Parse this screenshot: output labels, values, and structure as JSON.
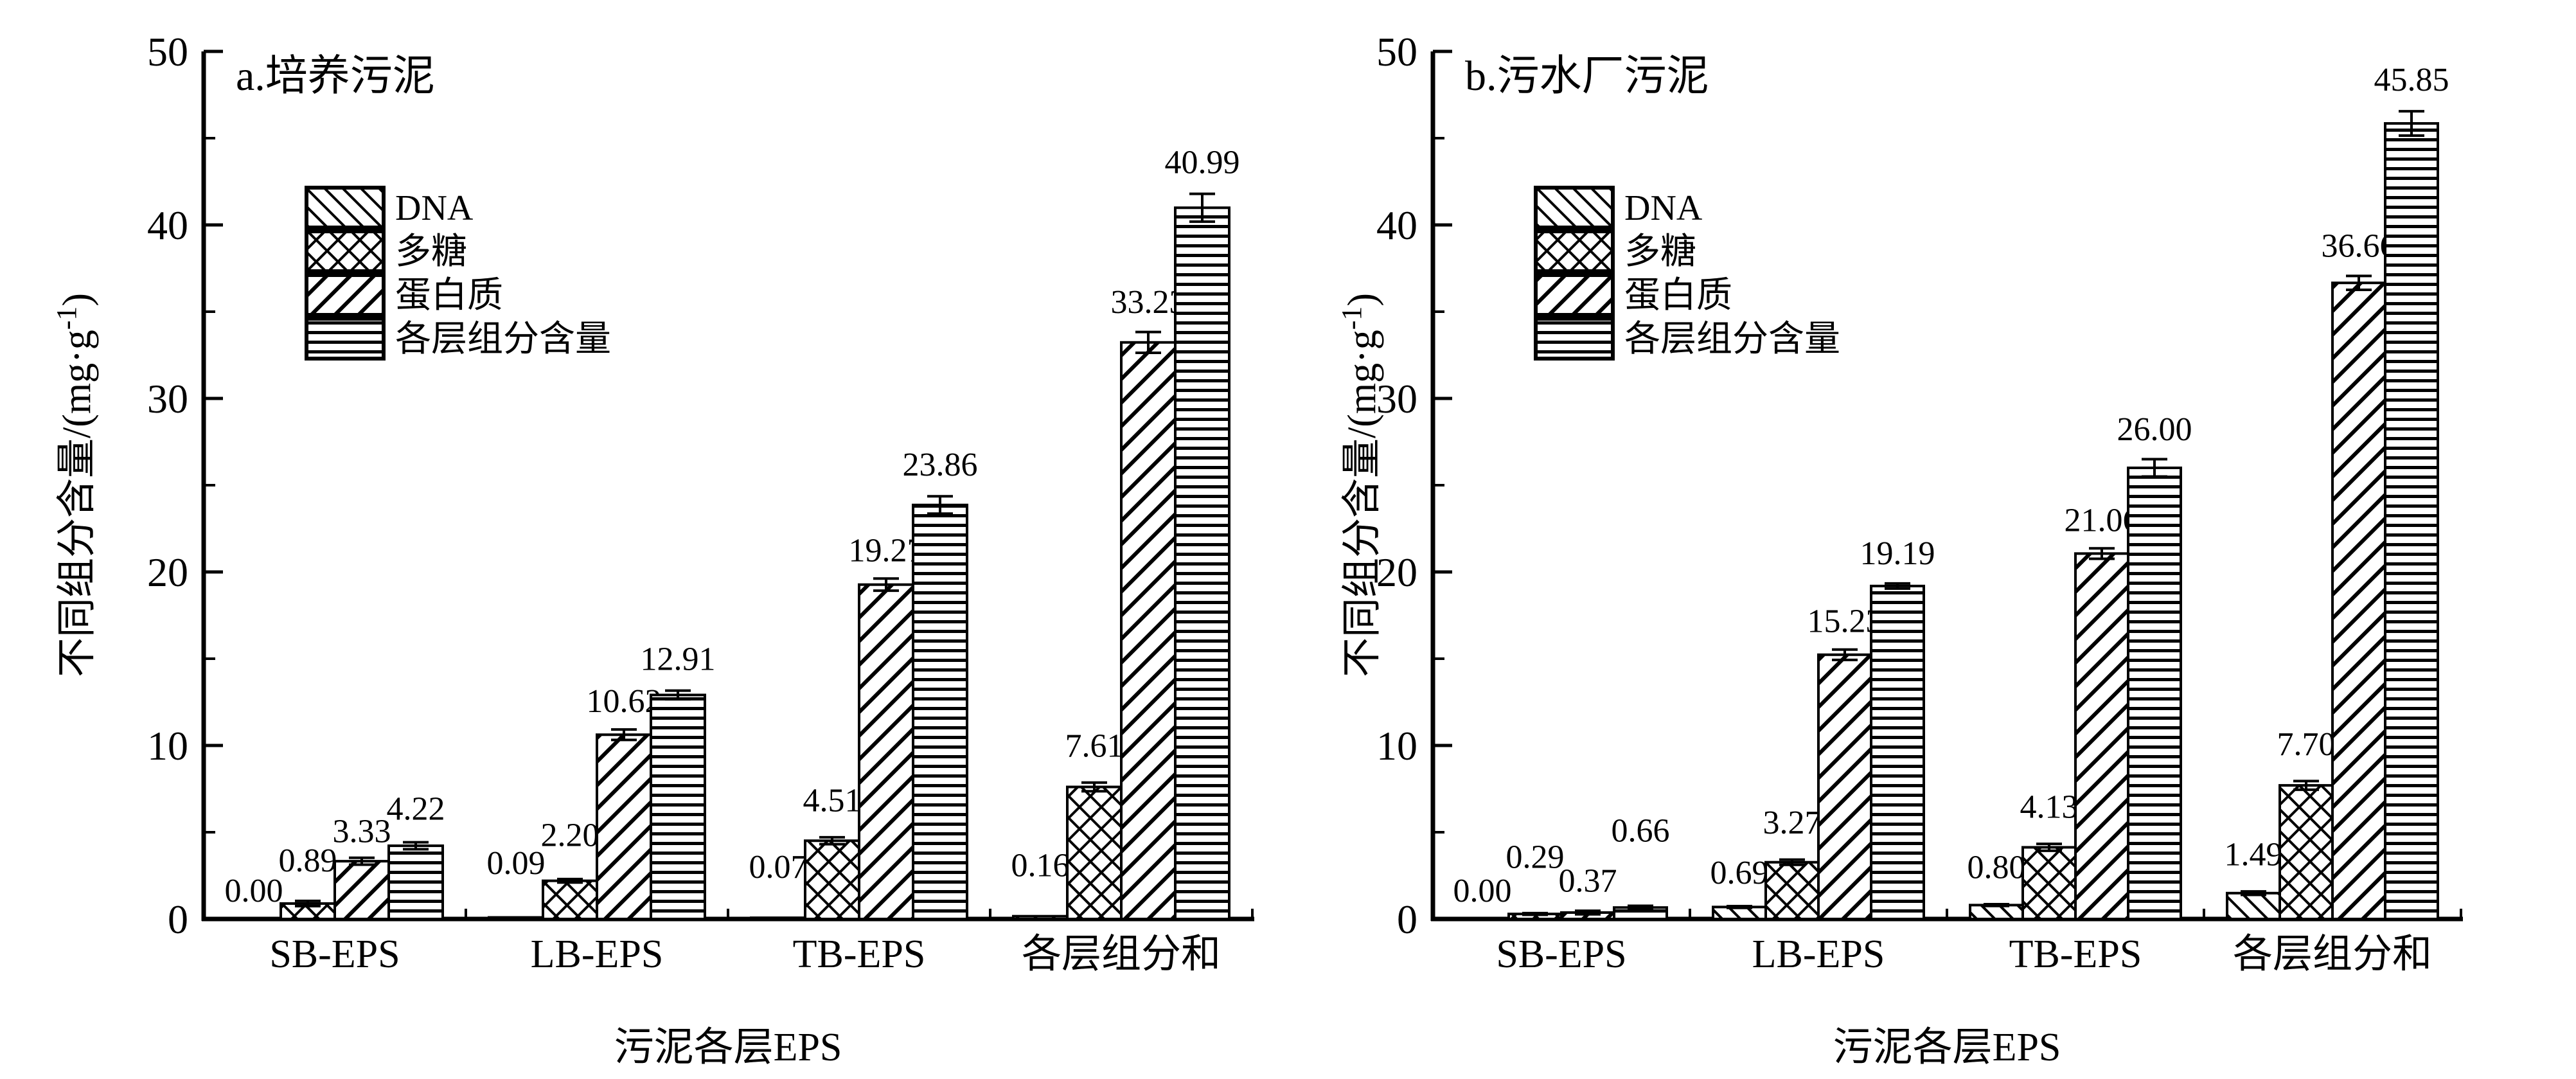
{
  "figure": {
    "background": "#ffffff",
    "ink": "#000000"
  },
  "chart_data": [
    {
      "type": "bar",
      "panel_label": "a.培养污泥",
      "categories": [
        "SB-EPS",
        "LB-EPS",
        "TB-EPS",
        "各层组分和"
      ],
      "series": [
        {
          "name": "DNA",
          "pattern": "diag-back",
          "values": [
            0.0,
            0.09,
            0.07,
            0.16
          ],
          "errors": [
            0,
            0,
            0,
            0
          ],
          "label_dy": [
            0.3,
            1.8,
            1.6,
            1.6
          ]
        },
        {
          "name": "多糖",
          "pattern": "crosshatch",
          "values": [
            0.89,
            2.2,
            4.51,
            7.61
          ],
          "errors": [
            0.15,
            0.1,
            0.2,
            0.25
          ],
          "label_dy": [
            1.0,
            1.2,
            0.8,
            0.8
          ]
        },
        {
          "name": "蛋白质",
          "pattern": "diag-fwd",
          "values": [
            3.33,
            10.62,
            19.27,
            33.23
          ],
          "errors": [
            0.2,
            0.3,
            0.35,
            0.6
          ],
          "label_dy": [
            0.2,
            0.3,
            0.3,
            0.4
          ]
        },
        {
          "name": "各层组分含量",
          "pattern": "hlines",
          "values": [
            4.22,
            12.91,
            23.86,
            40.99
          ],
          "errors": [
            0.2,
            0.25,
            0.5,
            0.8
          ],
          "label_dy": [
            0.6,
            0.5,
            0.5,
            0.5
          ]
        }
      ],
      "xlabel": "污泥各层EPS",
      "ylabel": {
        "pre": "不同组分含量/(mg·g",
        "sup": "-1",
        "post": ")"
      },
      "ylim": [
        0,
        50
      ],
      "yticks": [
        0,
        10,
        20,
        30,
        40,
        50
      ],
      "yticks_minor": [
        5,
        15,
        25,
        35,
        45
      ],
      "grid": false,
      "legend_position": "upper-left-inside",
      "value_label_decimals": 2
    },
    {
      "type": "bar",
      "panel_label": "b.污水厂污泥",
      "categories": [
        "SB-EPS",
        "LB-EPS",
        "TB-EPS",
        "各层组分和"
      ],
      "series": [
        {
          "name": "DNA",
          "pattern": "diag-back",
          "values": [
            0.0,
            0.69,
            0.8,
            1.49
          ],
          "errors": [
            0,
            0.05,
            0.05,
            0.1
          ],
          "label_dy": [
            0.3,
            0.6,
            0.8,
            0.8
          ]
        },
        {
          "name": "多糖",
          "pattern": "crosshatch",
          "values": [
            0.29,
            3.27,
            4.13,
            7.7
          ],
          "errors": [
            0.05,
            0.15,
            0.2,
            0.25
          ],
          "label_dy": [
            1.9,
            0.8,
            0.8,
            0.8
          ]
        },
        {
          "name": "蛋白质",
          "pattern": "diag-fwd",
          "values": [
            0.37,
            15.23,
            21.06,
            36.66
          ],
          "errors": [
            0.1,
            0.3,
            0.3,
            0.4
          ],
          "label_dy": [
            0.4,
            0.3,
            0.3,
            0.4
          ]
        },
        {
          "name": "各层组分含量",
          "pattern": "hlines",
          "values": [
            0.66,
            19.19,
            26.0,
            45.85
          ],
          "errors": [
            0.1,
            0.15,
            0.5,
            0.7
          ],
          "label_dy": [
            3.0,
            0.4,
            0.4,
            0.5
          ]
        }
      ],
      "xlabel": "污泥各层EPS",
      "ylabel": {
        "pre": "不同组分含量/(mg·g",
        "sup": "-1",
        "post": ")"
      },
      "ylim": [
        0,
        50
      ],
      "yticks": [
        0,
        10,
        20,
        30,
        40,
        50
      ],
      "yticks_minor": [
        5,
        15,
        25,
        35,
        45
      ],
      "grid": false,
      "legend_position": "upper-left-inside",
      "value_label_decimals": 2
    }
  ]
}
